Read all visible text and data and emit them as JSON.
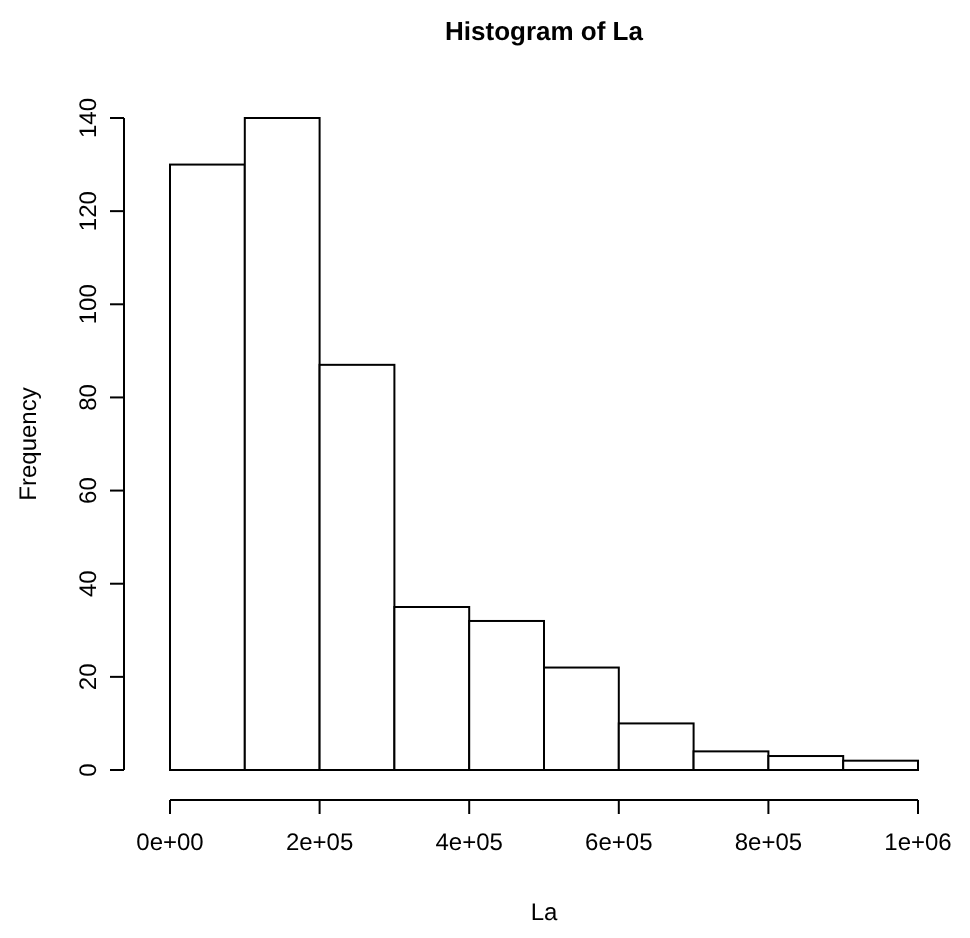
{
  "chart_data": {
    "type": "histogram",
    "title": "Histogram of La",
    "xlabel": "La",
    "ylabel": "Frequency",
    "bins": [
      0,
      100000,
      200000,
      300000,
      400000,
      500000,
      600000,
      700000,
      800000,
      900000,
      1000000
    ],
    "values": [
      130,
      140,
      87,
      35,
      32,
      22,
      10,
      4,
      3,
      2
    ],
    "color": "#ffffff",
    "xlim": [
      0,
      1000000
    ],
    "xticks": [
      {
        "value": 0,
        "label": "0e+00"
      },
      {
        "value": 200000,
        "label": "2e+05"
      },
      {
        "value": 400000,
        "label": "4e+05"
      },
      {
        "value": 600000,
        "label": "6e+05"
      },
      {
        "value": 800000,
        "label": "8e+05"
      },
      {
        "value": 1000000,
        "label": "1e+06"
      }
    ],
    "ylim": [
      0,
      140
    ],
    "yticks": [
      0,
      20,
      40,
      60,
      80,
      100,
      120,
      140
    ],
    "grid": false
  }
}
